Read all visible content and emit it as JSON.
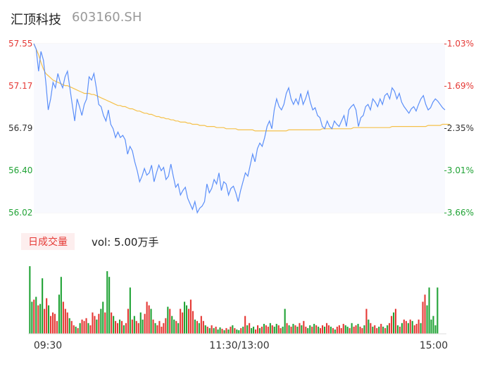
{
  "stock": {
    "name": "汇顶科技",
    "code": "603160.SH"
  },
  "volume": {
    "tab_label": "日成交量",
    "label_text": "vol: 5.00万手"
  },
  "colors": {
    "up": "#e53935",
    "down": "#21a336",
    "price_line": "#5b8ff9",
    "avg_line": "#f5c14a"
  },
  "chart_data": {
    "type": "line",
    "title": "",
    "price_axis": {
      "min": 56.02,
      "max": 57.55,
      "ticks": [
        "57.55",
        "57.17",
        "56.79",
        "56.40",
        "56.02"
      ]
    },
    "pct_axis": {
      "ticks": [
        "-1.03%",
        "-1.69%",
        "-2.35%",
        "-3.01%",
        "-3.66%"
      ]
    },
    "time_labels": [
      "09:30",
      "11:30/13:00",
      "15:00"
    ],
    "series": [
      {
        "name": "",
        "values": [
          57.55,
          57.5,
          57.3,
          57.48,
          57.4,
          57.2,
          56.95,
          57.05,
          57.2,
          57.15,
          57.28,
          57.2,
          57.15,
          57.25,
          57.3,
          57.15,
          57.0,
          56.85,
          57.05,
          56.98,
          56.9,
          57.0,
          57.05,
          57.25,
          57.22,
          57.28,
          57.15,
          57.0,
          56.98,
          56.9,
          56.85,
          56.95,
          56.82,
          56.78,
          56.7,
          56.75,
          56.7,
          56.72,
          56.68,
          56.55,
          56.62,
          56.58,
          56.48,
          56.4,
          56.3,
          56.35,
          56.42,
          56.36,
          56.38,
          56.45,
          56.3,
          56.38,
          56.45,
          56.4,
          56.43,
          56.32,
          56.35,
          56.46,
          56.35,
          56.25,
          56.28,
          56.18,
          56.22,
          56.25,
          56.15,
          56.1,
          56.05,
          56.12,
          56.02,
          56.06,
          56.08,
          56.12,
          56.28,
          56.2,
          56.24,
          56.32,
          56.28,
          56.38,
          56.22,
          56.3,
          56.28,
          56.18,
          56.24,
          56.26,
          56.2,
          56.12,
          56.22,
          56.3,
          56.38,
          56.35,
          56.45,
          56.55,
          56.48,
          56.6,
          56.65,
          56.62,
          56.7,
          56.8,
          56.85,
          56.78,
          56.95,
          57.05,
          56.98,
          56.95,
          57.0,
          57.1,
          57.15,
          57.05,
          57.0,
          57.05,
          57.0,
          57.1,
          57.0,
          57.05,
          57.12,
          57.02,
          56.95,
          56.97,
          56.9,
          56.88,
          56.8,
          56.78,
          56.85,
          56.8,
          56.78,
          56.85,
          56.82,
          56.8,
          56.85,
          56.9,
          56.8,
          56.95,
          56.98,
          57.0,
          56.95,
          56.8,
          56.88,
          56.9,
          56.98,
          57.0,
          56.95,
          57.05,
          57.02,
          56.98,
          57.05,
          57.0,
          57.08,
          57.1,
          57.05,
          57.15,
          57.12,
          57.05,
          57.1,
          57.02,
          56.98,
          56.95,
          56.92,
          56.96,
          56.98,
          56.94,
          57.0,
          57.05,
          57.08,
          57.0,
          56.95,
          56.97,
          57.02,
          57.05,
          57.03,
          57.0,
          56.97,
          56.95
        ],
        "color": "#5b8ff9"
      },
      {
        "name": "",
        "values": [
          57.55,
          57.5,
          57.45,
          57.38,
          57.32,
          57.28,
          57.26,
          57.24,
          57.22,
          57.21,
          57.2,
          57.19,
          57.18,
          57.17,
          57.17,
          57.16,
          57.15,
          57.14,
          57.13,
          57.12,
          57.11,
          57.1,
          57.1,
          57.1,
          57.09,
          57.09,
          57.08,
          57.07,
          57.06,
          57.05,
          57.04,
          57.03,
          57.02,
          57.01,
          57.0,
          56.99,
          56.99,
          56.98,
          56.98,
          56.97,
          56.96,
          56.96,
          56.95,
          56.94,
          56.94,
          56.93,
          56.92,
          56.92,
          56.91,
          56.91,
          56.9,
          56.89,
          56.89,
          56.88,
          56.88,
          56.87,
          56.87,
          56.86,
          56.86,
          56.85,
          56.85,
          56.84,
          56.84,
          56.84,
          56.83,
          56.83,
          56.82,
          56.82,
          56.82,
          56.81,
          56.81,
          56.81,
          56.8,
          56.8,
          56.8,
          56.8,
          56.79,
          56.79,
          56.79,
          56.79,
          56.78,
          56.78,
          56.78,
          56.78,
          56.78,
          56.77,
          56.77,
          56.77,
          56.77,
          56.77,
          56.77,
          56.77,
          56.76,
          56.76,
          56.76,
          56.76,
          56.76,
          56.76,
          56.76,
          56.76,
          56.76,
          56.76,
          56.76,
          56.76,
          56.76,
          56.76,
          56.77,
          56.77,
          56.77,
          56.77,
          56.77,
          56.77,
          56.77,
          56.77,
          56.77,
          56.77,
          56.77,
          56.77,
          56.77,
          56.77,
          56.78,
          56.78,
          56.78,
          56.78,
          56.78,
          56.78,
          56.78,
          56.78,
          56.78,
          56.78,
          56.78,
          56.78,
          56.78,
          56.79,
          56.79,
          56.79,
          56.79,
          56.79,
          56.79,
          56.79,
          56.79,
          56.79,
          56.79,
          56.79,
          56.79,
          56.79,
          56.79,
          56.79,
          56.79,
          56.8,
          56.8,
          56.8,
          56.8,
          56.8,
          56.8,
          56.8,
          56.8,
          56.8,
          56.8,
          56.8,
          56.8,
          56.8,
          56.8,
          56.8,
          56.81,
          56.81,
          56.81,
          56.81,
          56.81,
          56.81,
          56.82,
          56.82,
          56.82,
          56.82
        ],
        "color": "#f5c14a"
      }
    ],
    "volume_series": {
      "values": [
        95,
        45,
        48,
        52,
        40,
        42,
        78,
        35,
        50,
        40,
        25,
        30,
        28,
        18,
        55,
        80,
        45,
        35,
        30,
        22,
        18,
        12,
        10,
        8,
        15,
        20,
        18,
        22,
        15,
        12,
        30,
        25,
        20,
        28,
        35,
        45,
        30,
        88,
        80,
        30,
        25,
        18,
        15,
        20,
        18,
        12,
        15,
        35,
        65,
        20,
        25,
        18,
        15,
        30,
        20,
        28,
        45,
        40,
        35,
        20,
        15,
        12,
        18,
        10,
        15,
        22,
        38,
        35,
        25,
        20,
        18,
        15,
        35,
        30,
        45,
        40,
        35,
        48,
        32,
        20,
        18,
        15,
        25,
        18,
        12,
        10,
        8,
        12,
        8,
        10,
        6,
        9,
        7,
        5,
        8,
        6,
        10,
        12,
        8,
        6,
        5,
        8,
        10,
        25,
        12,
        15,
        8,
        10,
        6,
        12,
        8,
        10,
        14,
        12,
        10,
        15,
        12,
        10,
        14,
        12,
        8,
        10,
        35,
        15,
        12,
        10,
        14,
        12,
        10,
        15,
        12,
        18,
        10,
        8,
        12,
        10,
        14,
        12,
        10,
        8,
        12,
        10,
        15,
        12,
        10,
        8,
        6,
        10,
        12,
        8,
        14,
        12,
        10,
        8,
        15,
        10,
        12,
        14,
        10,
        8,
        12,
        35,
        20,
        15,
        10,
        12,
        8,
        10,
        14,
        10,
        8,
        12,
        15,
        25,
        30,
        35,
        12,
        10,
        15,
        20,
        18,
        15,
        20,
        18,
        12,
        14,
        20,
        15,
        45,
        55,
        40,
        65,
        20,
        25,
        12,
        65
      ],
      "up": [
        0,
        0,
        1,
        0,
        1,
        0,
        0,
        1,
        1,
        0,
        1,
        1,
        1,
        1,
        0,
        0,
        1,
        1,
        1,
        0,
        1,
        1,
        0,
        1,
        0,
        1,
        1,
        1,
        0,
        1,
        1,
        1,
        0,
        1,
        0,
        0,
        1,
        0,
        0,
        1,
        0,
        1,
        1,
        0,
        1,
        0,
        1,
        1,
        0,
        1,
        0,
        1,
        1,
        0,
        0,
        1,
        1,
        1,
        0,
        1,
        0,
        1,
        1,
        1,
        1,
        1,
        0,
        1,
        0,
        0,
        1,
        0,
        1,
        1,
        0,
        0,
        1,
        1,
        1,
        0,
        1,
        0,
        1,
        1,
        0,
        1,
        0,
        1,
        0,
        1,
        0,
        0,
        1,
        0,
        1,
        0,
        1,
        0,
        1,
        0,
        0,
        1,
        0,
        1,
        0,
        1,
        0,
        0,
        1,
        1,
        0,
        1,
        0,
        1,
        1,
        0,
        1,
        0,
        0,
        1,
        1,
        0,
        0,
        1,
        0,
        1,
        0,
        1,
        0,
        1,
        0,
        1,
        1,
        0,
        0,
        1,
        0,
        1,
        0,
        1,
        1,
        0,
        1,
        1,
        0,
        1,
        0,
        1,
        1,
        1,
        1,
        0,
        0,
        1,
        0,
        1,
        1,
        0,
        1,
        1,
        0,
        1,
        0,
        1,
        0,
        1,
        1,
        0,
        1,
        0,
        1,
        0,
        1,
        1,
        0,
        1,
        0,
        1,
        0,
        1,
        1,
        0,
        1,
        0,
        1,
        1,
        1,
        0,
        1,
        1,
        0
      ]
    }
  }
}
